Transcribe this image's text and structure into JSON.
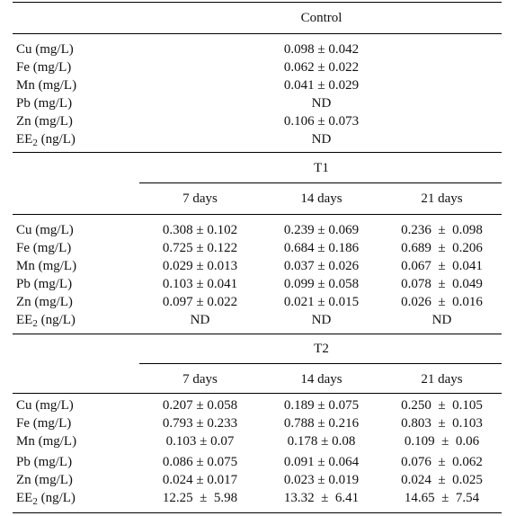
{
  "control": {
    "header": "Control",
    "rows": [
      {
        "label": "Cu (mg/L)",
        "value": "0.098 ± 0.042"
      },
      {
        "label": "Fe (mg/L)",
        "value": "0.062 ± 0.022"
      },
      {
        "label": "Mn (mg/L)",
        "value": "0.041 ± 0.029"
      },
      {
        "label": "Pb (mg/L)",
        "value": "ND"
      },
      {
        "label": "Zn (mg/L)",
        "value": "0.106 ± 0.073"
      },
      {
        "label_prefix": "EE",
        "label_sub": "2",
        "label_suffix": " (ng/L)",
        "value": "ND"
      }
    ]
  },
  "t1": {
    "header": "T1",
    "columns": [
      "7 days",
      "14 days",
      "21 days"
    ],
    "rows": [
      {
        "label": "Cu (mg/L)",
        "values": [
          "0.308 ± 0.102",
          "0.239 ± 0.069",
          "0.236  ±  0.098"
        ]
      },
      {
        "label": "Fe (mg/L)",
        "values": [
          "0.725 ± 0.122",
          "0.684 ± 0.186",
          "0.689  ±  0.206"
        ]
      },
      {
        "label": "Mn (mg/L)",
        "values": [
          "0.029 ± 0.013",
          "0.037 ± 0.026",
          "0.067  ±  0.041"
        ]
      },
      {
        "label": "Pb (mg/L)",
        "values": [
          "0.103 ± 0.041",
          "0.099 ± 0.058",
          "0.078  ±  0.049"
        ]
      },
      {
        "label": "Zn (mg/L)",
        "values": [
          "0.097 ± 0.022",
          "0.021 ± 0.015",
          "0.026  ±  0.016"
        ]
      },
      {
        "label_prefix": "EE",
        "label_sub": "2",
        "label_suffix": " (ng/L)",
        "values": [
          "ND",
          "ND",
          "ND"
        ]
      }
    ]
  },
  "t2": {
    "header": "T2",
    "columns": [
      "7 days",
      "14 days",
      "21 days"
    ],
    "rows": [
      {
        "label": "Cu (mg/L)",
        "values": [
          "0.207 ± 0.058",
          "0.189 ± 0.075",
          "0.250  ±  0.105"
        ]
      },
      {
        "label": "Fe (mg/L)",
        "values": [
          "0.793 ± 0.233",
          "0.788 ± 0.216",
          "0.803  ±  0.103"
        ]
      },
      {
        "label": "Mn (mg/L)",
        "values": [
          "0.103 ± 0.07",
          "0.178 ± 0.08",
          "0.109  ±  0.06"
        ]
      },
      {
        "label": "Pb (mg/L)",
        "values": [
          "0.086 ± 0.075",
          "0.091 ± 0.064",
          "0.076  ±  0.062"
        ]
      },
      {
        "label": "Zn (mg/L)",
        "values": [
          "0.024 ± 0.017",
          "0.023 ± 0.019",
          "0.024  ±  0.025"
        ]
      },
      {
        "label_prefix": "EE",
        "label_sub": "2",
        "label_suffix": " (ng/L)",
        "values": [
          "12.25  ±  5.98",
          "13.32  ±  6.41",
          "14.65  ±  7.54"
        ]
      }
    ]
  }
}
